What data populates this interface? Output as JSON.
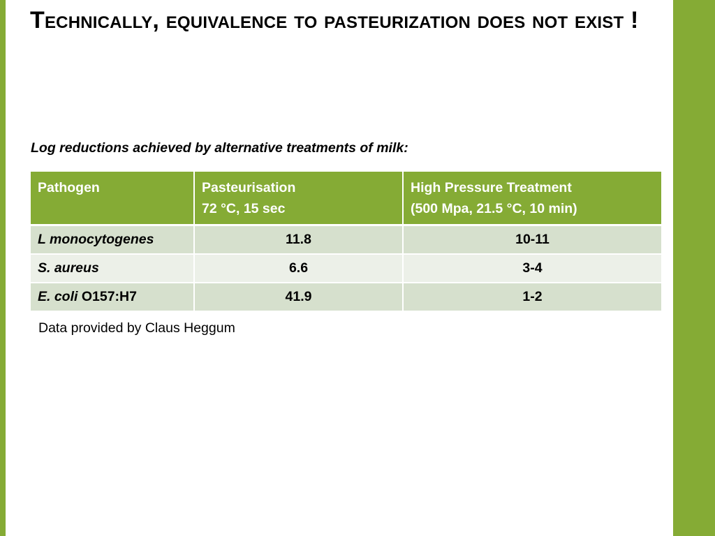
{
  "slide": {
    "title": "Technically, equivalence to pasteurization does not exist !",
    "caption": "Log reductions achieved by alternative treatments of milk:",
    "source_note": "Data provided by Claus Heggum",
    "colors": {
      "accent": "#85ab35",
      "header_text": "#ffffff",
      "row_odd": "#d6e0cd",
      "row_even": "#ecf0e8"
    }
  },
  "table": {
    "headers": [
      {
        "line1": "Pathogen",
        "line2": ""
      },
      {
        "line1": "Pasteurisation",
        "line2": "72 °C, 15 sec"
      },
      {
        "line1": "High Pressure Treatment",
        "line2": "(500 Mpa, 21.5 °C, 10 min)"
      }
    ],
    "rows": [
      {
        "pathogen_italic": "L monocytogenes",
        "pathogen_plain": "",
        "pasteurisation": "11.8",
        "high_pressure": "10-11"
      },
      {
        "pathogen_italic": "S. aureus",
        "pathogen_plain": "",
        "pasteurisation": "6.6",
        "high_pressure": "3-4"
      },
      {
        "pathogen_italic": "E. coli",
        "pathogen_plain": " O157:H7",
        "pasteurisation": "41.9",
        "high_pressure": "1-2"
      }
    ]
  }
}
